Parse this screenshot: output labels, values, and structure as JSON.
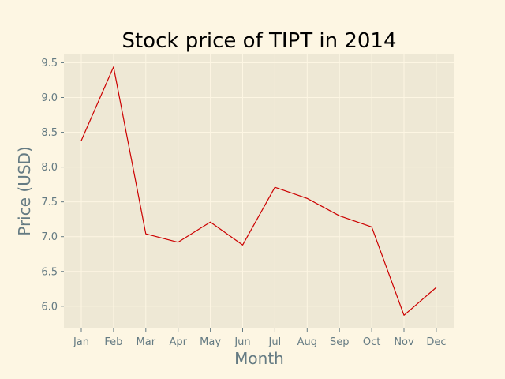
{
  "chart_data": {
    "type": "line",
    "title": "Stock price of TIPT in 2014",
    "xlabel": "Month",
    "ylabel": "Price (USD)",
    "categories": [
      "Jan",
      "Feb",
      "Mar",
      "Apr",
      "May",
      "Jun",
      "Jul",
      "Aug",
      "Sep",
      "Oct",
      "Nov",
      "Dec"
    ],
    "series": [
      {
        "values": [
          8.38,
          9.44,
          7.04,
          6.92,
          7.21,
          6.88,
          7.71,
          7.55,
          7.3,
          7.14,
          5.87,
          6.27
        ],
        "color": "#cc0000"
      }
    ],
    "yticks": [
      6.0,
      6.5,
      7.0,
      7.5,
      8.0,
      8.5,
      9.0,
      9.5
    ],
    "ytick_labels": [
      "6.0",
      "6.5",
      "7.0",
      "7.5",
      "8.0",
      "8.5",
      "9.0",
      "9.5"
    ],
    "ylim": [
      5.68,
      9.63
    ],
    "grid": true,
    "colors": {
      "figure_background": "#fdf6e3",
      "plot_background": "#eee8d5",
      "grid": "#fdf6e3",
      "tick_text": "#657b83",
      "axis_label_text": "#657b83",
      "title_text": "#000000"
    }
  }
}
